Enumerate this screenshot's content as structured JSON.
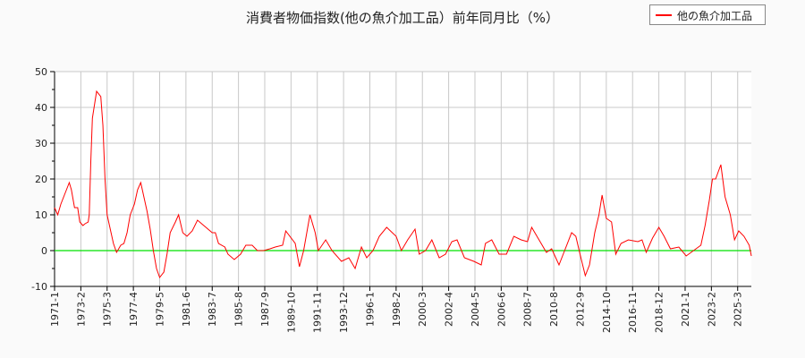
{
  "chart_data": {
    "type": "line",
    "title": "消費者物価指数(他の魚介加工品）前年同月比（%）",
    "xlabel": "",
    "ylabel": "",
    "ylim": [
      -10,
      50
    ],
    "yticks": [
      -10,
      0,
      10,
      20,
      30,
      40,
      50
    ],
    "grid": true,
    "legend_placement": "top-right",
    "x_unit": "months since 1971-1",
    "x_range": [
      0,
      663
    ],
    "xtick_labels": [
      "1971-1",
      "1973-2",
      "1975-3",
      "1977-4",
      "1979-5",
      "1981-6",
      "1983-7",
      "1985-8",
      "1987-9",
      "1989-10",
      "1991-11",
      "1993-12",
      "1996-1",
      "1998-2",
      "2000-3",
      "2002-4",
      "2004-5",
      "2006-6",
      "2008-7",
      "2010-8",
      "2012-9",
      "2014-10",
      "2016-11",
      "2018-12",
      "2021-1",
      "2023-2",
      "2025-3"
    ],
    "xtick_step_months": 25,
    "reference_line": {
      "y": 0,
      "color": "#00e000"
    },
    "series": [
      {
        "name": "他の魚介加工品",
        "color": "#ff0000",
        "points": [
          [
            0,
            12
          ],
          [
            3,
            10
          ],
          [
            6,
            13
          ],
          [
            10,
            16
          ],
          [
            14,
            19
          ],
          [
            16,
            17
          ],
          [
            19,
            12
          ],
          [
            22,
            12
          ],
          [
            24,
            8
          ],
          [
            27,
            7
          ],
          [
            29,
            7.5
          ],
          [
            32,
            8
          ],
          [
            33,
            10
          ],
          [
            34.5,
            25
          ],
          [
            36,
            37
          ],
          [
            40,
            44.5
          ],
          [
            44,
            43
          ],
          [
            46,
            35
          ],
          [
            48,
            20
          ],
          [
            50,
            10
          ],
          [
            53,
            6
          ],
          [
            56,
            2
          ],
          [
            59,
            -0.5
          ],
          [
            63,
            1.5
          ],
          [
            66,
            2
          ],
          [
            69,
            5
          ],
          [
            72,
            10
          ],
          [
            76,
            13
          ],
          [
            79,
            17
          ],
          [
            82,
            19
          ],
          [
            85,
            15
          ],
          [
            88,
            11
          ],
          [
            91,
            6
          ],
          [
            94,
            0
          ],
          [
            97,
            -5
          ],
          [
            100,
            -7.5
          ],
          [
            104,
            -6
          ],
          [
            107,
            -1
          ],
          [
            110,
            5
          ],
          [
            115,
            8
          ],
          [
            118,
            10
          ],
          [
            122,
            5
          ],
          [
            126,
            4
          ],
          [
            131,
            5.5
          ],
          [
            136,
            8.5
          ],
          [
            142,
            7
          ],
          [
            146,
            6
          ],
          [
            150,
            5
          ],
          [
            153,
            5
          ],
          [
            156,
            2
          ],
          [
            162,
            1
          ],
          [
            165,
            -1
          ],
          [
            171,
            -2.5
          ],
          [
            177,
            -1
          ],
          [
            182,
            1.5
          ],
          [
            188,
            1.5
          ],
          [
            193,
            0
          ],
          [
            199,
            0
          ],
          [
            205,
            0.5
          ],
          [
            210,
            1
          ],
          [
            217,
            1.5
          ],
          [
            220,
            5.5
          ],
          [
            229,
            2
          ],
          [
            233,
            -4.5
          ],
          [
            237,
            0
          ],
          [
            243,
            10
          ],
          [
            248,
            5
          ],
          [
            251,
            0
          ],
          [
            258,
            3
          ],
          [
            264,
            0
          ],
          [
            273,
            -3
          ],
          [
            280,
            -2
          ],
          [
            286,
            -5
          ],
          [
            292,
            1
          ],
          [
            297,
            -2
          ],
          [
            303,
            0
          ],
          [
            309,
            4
          ],
          [
            316,
            6.5
          ],
          [
            325,
            4
          ],
          [
            330,
            0
          ],
          [
            336,
            3
          ],
          [
            343,
            6
          ],
          [
            347,
            -1
          ],
          [
            353,
            0
          ],
          [
            359,
            3
          ],
          [
            366,
            -2
          ],
          [
            372,
            -1
          ],
          [
            378,
            2.5
          ],
          [
            383,
            3
          ],
          [
            390,
            -2
          ],
          [
            399,
            -3
          ],
          [
            406,
            -4
          ],
          [
            410,
            2
          ],
          [
            416,
            3
          ],
          [
            423,
            -1
          ],
          [
            430,
            -1
          ],
          [
            437,
            4
          ],
          [
            444,
            3
          ],
          [
            450,
            2.5
          ],
          [
            454,
            6.5
          ],
          [
            461,
            3
          ],
          [
            468,
            -0.5
          ],
          [
            473,
            0.5
          ],
          [
            480,
            -4
          ],
          [
            484,
            -1
          ],
          [
            492,
            5
          ],
          [
            496,
            4
          ],
          [
            500,
            -1
          ],
          [
            505,
            -7
          ],
          [
            509,
            -4
          ],
          [
            514,
            5
          ],
          [
            518,
            10
          ],
          [
            521,
            15.5
          ],
          [
            525,
            9
          ],
          [
            530,
            8
          ],
          [
            534,
            -1
          ],
          [
            539,
            2
          ],
          [
            546,
            3
          ],
          [
            555,
            2.5
          ],
          [
            559,
            3
          ],
          [
            563,
            -0.5
          ],
          [
            569,
            3.5
          ],
          [
            575,
            6.5
          ],
          [
            580,
            4
          ],
          [
            586,
            0.5
          ],
          [
            594,
            1
          ],
          [
            601,
            -1.5
          ],
          [
            608,
            0
          ],
          [
            615,
            1.5
          ],
          [
            619,
            7
          ],
          [
            623,
            14
          ],
          [
            626,
            20
          ],
          [
            629,
            20
          ],
          [
            634,
            24
          ],
          [
            638,
            15
          ],
          [
            643,
            10
          ],
          [
            647,
            3
          ],
          [
            651,
            5.5
          ],
          [
            656,
            4
          ],
          [
            661,
            1.5
          ],
          [
            663,
            -1.5
          ]
        ]
      }
    ]
  }
}
